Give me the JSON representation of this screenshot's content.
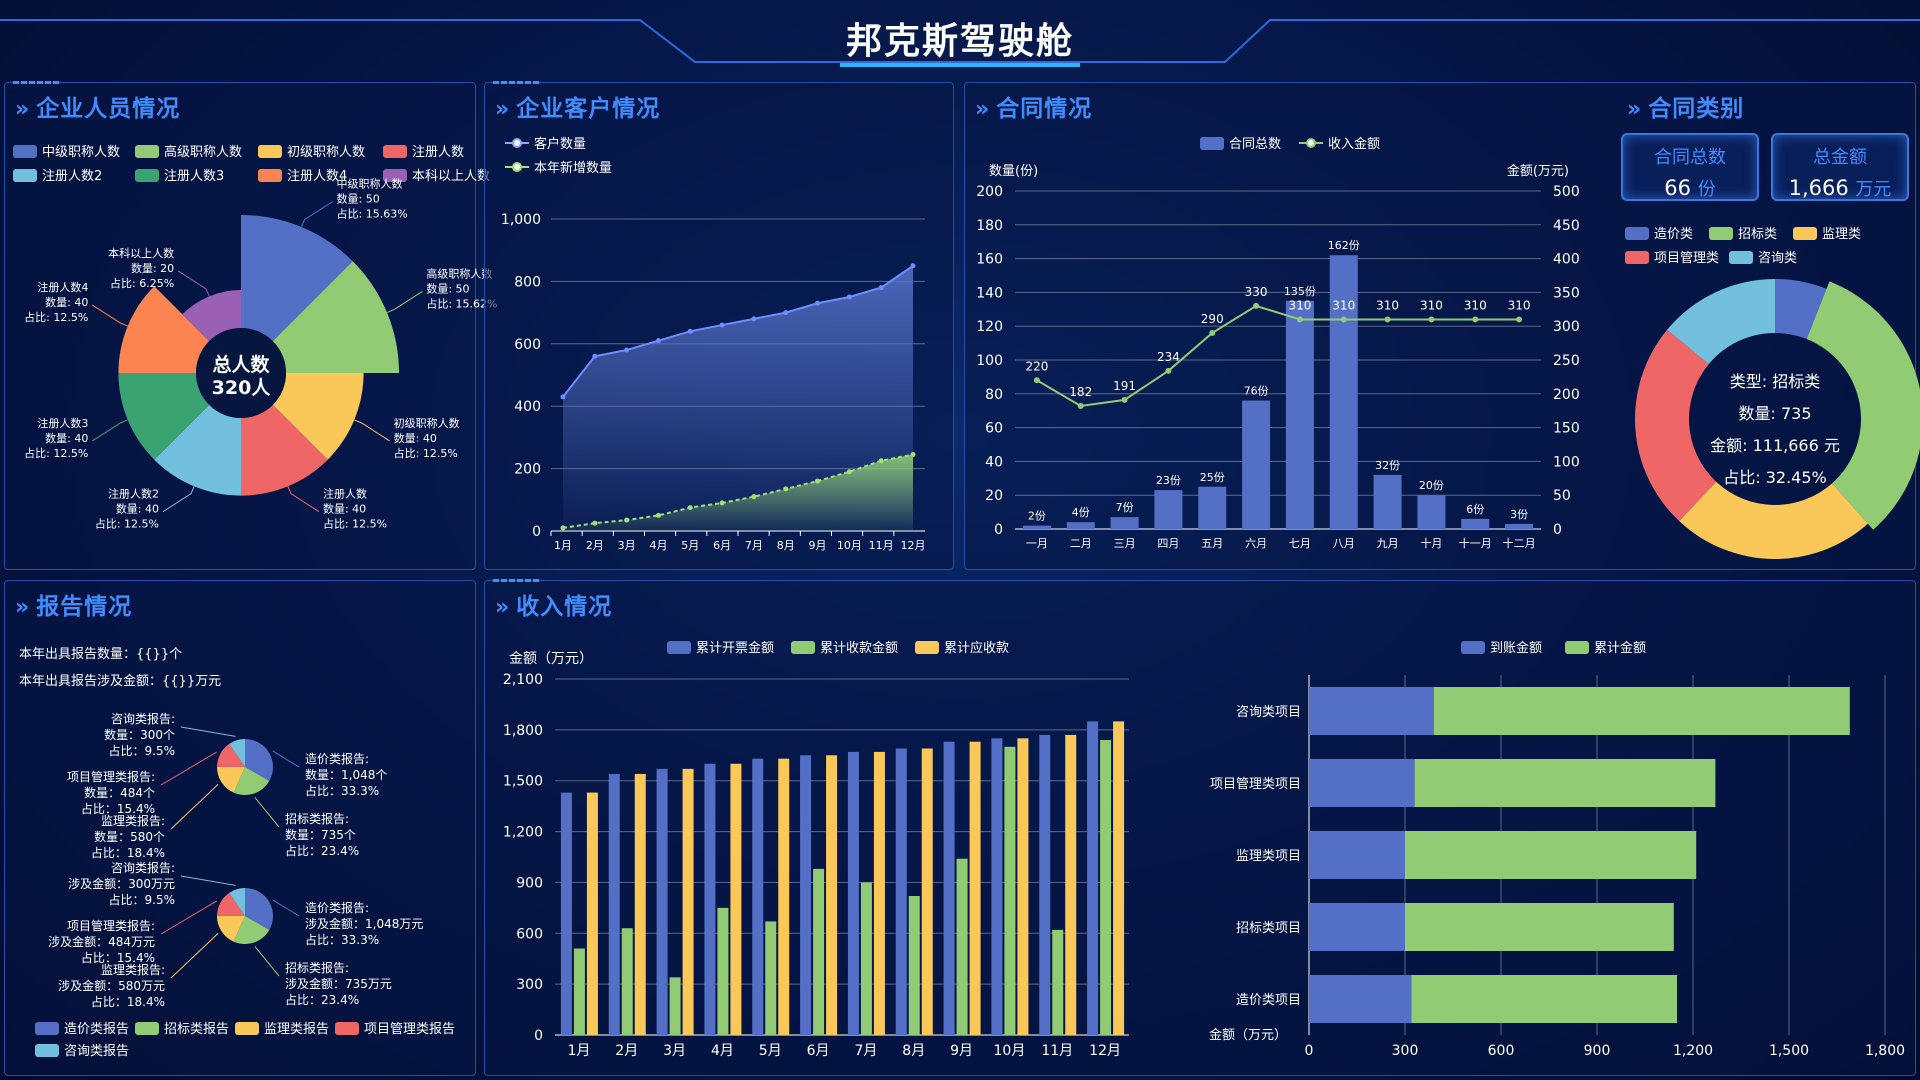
{
  "title": "邦克斯驾驶舱",
  "panels": {
    "staff": "企业人员情况",
    "customers": "企业客户情况",
    "contracts": "合同情况",
    "contract_types": "合同类别",
    "reports": "报告情况",
    "income": "收入情况"
  },
  "colors": [
    "#5470c6",
    "#91cc75",
    "#fac858",
    "#ee6666",
    "#73c0de",
    "#3ba272",
    "#fc8452",
    "#9a60b4"
  ],
  "stats": {
    "total_contracts_label": "合同总数",
    "total_contracts_value": "66",
    "total_contracts_unit": "份",
    "total_amount_label": "总金额",
    "total_amount_value": "1,666",
    "total_amount_unit": "万元"
  },
  "reports_text": {
    "count": "本年出具报告数量：{{}}个",
    "amount": "本年出具报告涉及金额：{{}}万元"
  },
  "chart_data": [
    {
      "id": "staff",
      "type": "pie",
      "center_label": "总人数",
      "center_value": "320人",
      "legend": [
        "中级职称人数",
        "高级职称人数",
        "初级职称人数",
        "注册人数",
        "注册人数2",
        "注册人数3",
        "注册人数4",
        "本科以上人数"
      ],
      "slices": [
        {
          "name": "中级职称人数",
          "value": 50,
          "pct": "15.63%"
        },
        {
          "name": "高级职称人数",
          "value": 50,
          "pct": "15.62%"
        },
        {
          "name": "初级职称人数",
          "value": 40,
          "pct": "12.5%"
        },
        {
          "name": "注册人数",
          "value": 40,
          "pct": "12.5%"
        },
        {
          "name": "注册人数2",
          "value": 40,
          "pct": "12.5%"
        },
        {
          "name": "注册人数3",
          "value": 40,
          "pct": "12.5%"
        },
        {
          "name": "注册人数4",
          "value": 40,
          "pct": "12.5%"
        },
        {
          "name": "本科以上人数",
          "value": 20,
          "pct": "6.25%"
        }
      ],
      "value_prefix": "数量: ",
      "pct_prefix": "占比: "
    },
    {
      "id": "customers",
      "type": "area",
      "categories": [
        "1月",
        "2月",
        "3月",
        "4月",
        "5月",
        "6月",
        "7月",
        "8月",
        "9月",
        "10月",
        "11月",
        "12月"
      ],
      "ylim": [
        0,
        1000
      ],
      "yticks": [
        "0",
        "200",
        "400",
        "600",
        "800",
        "1,000"
      ],
      "series": [
        {
          "name": "客户数量",
          "values": [
            430,
            560,
            580,
            610,
            640,
            660,
            680,
            700,
            730,
            750,
            780,
            850
          ]
        },
        {
          "name": "本年新增数量",
          "values": [
            10,
            25,
            35,
            50,
            75,
            90,
            110,
            135,
            160,
            190,
            225,
            245
          ]
        }
      ]
    },
    {
      "id": "contracts",
      "type": "bar",
      "categories": [
        "一月",
        "二月",
        "三月",
        "四月",
        "五月",
        "六月",
        "七月",
        "八月",
        "九月",
        "十月",
        "十一月",
        "十二月"
      ],
      "ylabel": "数量(份)",
      "ylabel_right": "金额(万元)",
      "ylim": [
        0,
        200
      ],
      "ylim_right": [
        0,
        500
      ],
      "yticks": [
        "0",
        "20",
        "40",
        "60",
        "80",
        "100",
        "120",
        "140",
        "160",
        "180",
        "200"
      ],
      "yticks_right": [
        "0",
        "50",
        "100",
        "150",
        "200",
        "250",
        "300",
        "350",
        "400",
        "450",
        "500"
      ],
      "series": [
        {
          "name": "合同总数",
          "values": [
            2,
            4,
            7,
            23,
            25,
            76,
            135,
            162,
            32,
            20,
            6,
            3
          ],
          "labels": [
            "2份",
            "4份",
            "7份",
            "23份",
            "25份",
            "76份",
            "135份",
            "162份",
            "32份",
            "20份",
            "6份",
            "3份"
          ]
        },
        {
          "name": "收入金额",
          "values": [
            220,
            182,
            191,
            234,
            290,
            330,
            310,
            310,
            310,
            310,
            310,
            310
          ],
          "labels": [
            "220",
            "182",
            "191",
            "234",
            "290",
            "330",
            "310",
            "310",
            "310",
            "310",
            "310",
            "310"
          ]
        }
      ]
    },
    {
      "id": "contract_types",
      "type": "pie",
      "legend": [
        "造价类",
        "招标类",
        "监理类",
        "项目管理类",
        "咨询类"
      ],
      "slices": [
        {
          "name": "造价类",
          "value": 6
        },
        {
          "name": "招标类",
          "value": 32.45
        },
        {
          "name": "监理类",
          "value": 23.55
        },
        {
          "name": "项目管理类",
          "value": 24
        },
        {
          "name": "咨询类",
          "value": 14
        }
      ],
      "tooltip": [
        "类型: 招标类",
        "数量: 735",
        "金额: 111,666 元",
        "占比: 32.45%"
      ]
    },
    {
      "id": "reports_count",
      "type": "pie",
      "slices": [
        {
          "name": "造价类报告",
          "value": 1048,
          "label": [
            "造价类报告:",
            "数量：1,048个",
            "占比：33.3%"
          ]
        },
        {
          "name": "招标类报告",
          "value": 735,
          "label": [
            "招标类报告:",
            "数量：735个",
            "占比：23.4%"
          ]
        },
        {
          "name": "监理类报告",
          "value": 580,
          "label": [
            "监理类报告:",
            "数量：580个",
            "占比：18.4%"
          ]
        },
        {
          "name": "项目管理类报告",
          "value": 484,
          "label": [
            "项目管理类报告:",
            "数量：484个",
            "占比：15.4%"
          ]
        },
        {
          "name": "咨询类报告",
          "value": 300,
          "label": [
            "咨询类报告:",
            "数量：300个",
            "占比：9.5%"
          ]
        }
      ]
    },
    {
      "id": "reports_amount",
      "type": "pie",
      "slices": [
        {
          "name": "造价类报告",
          "value": 1048,
          "label": [
            "造价类报告:",
            "涉及金额：1,048万元",
            "占比：33.3%"
          ]
        },
        {
          "name": "招标类报告",
          "value": 735,
          "label": [
            "招标类报告:",
            "涉及金额：735万元",
            "占比：23.4%"
          ]
        },
        {
          "name": "监理类报告",
          "value": 580,
          "label": [
            "监理类报告:",
            "涉及金额：580万元",
            "占比：18.4%"
          ]
        },
        {
          "name": "项目管理类报告",
          "value": 484,
          "label": [
            "项目管理类报告:",
            "涉及金额：484万元",
            "占比：15.4%"
          ]
        },
        {
          "name": "咨询类报告",
          "value": 300,
          "label": [
            "咨询类报告:",
            "涉及金额：300万元",
            "占比：9.5%"
          ]
        }
      ],
      "legend": [
        "造价类报告",
        "招标类报告",
        "监理类报告",
        "项目管理类报告",
        "咨询类报告"
      ]
    },
    {
      "id": "income",
      "type": "bar",
      "categories": [
        "1月",
        "2月",
        "3月",
        "4月",
        "5月",
        "6月",
        "7月",
        "8月",
        "9月",
        "10月",
        "11月",
        "12月"
      ],
      "ylabel": "金额（万元）",
      "ylim": [
        0,
        2100
      ],
      "yticks": [
        "0",
        "300",
        "600",
        "900",
        "1,200",
        "1,500",
        "1,800",
        "2,100"
      ],
      "series": [
        {
          "name": "累计开票金额",
          "values": [
            1430,
            1540,
            1570,
            1600,
            1630,
            1650,
            1670,
            1690,
            1730,
            1750,
            1770,
            1850
          ]
        },
        {
          "name": "累计收款金额",
          "values": [
            510,
            630,
            340,
            750,
            670,
            980,
            900,
            820,
            1040,
            1700,
            620,
            1740
          ]
        },
        {
          "name": "累计应收款",
          "values": [
            1430,
            1540,
            1570,
            1600,
            1630,
            1650,
            1670,
            1690,
            1730,
            1750,
            1770,
            1850
          ]
        }
      ]
    },
    {
      "id": "income_projects",
      "type": "bar",
      "orientation": "horizontal",
      "categories": [
        "咨询类项目",
        "项目管理类项目",
        "监理类项目",
        "招标类项目",
        "造价类项目"
      ],
      "xlabel": "金额（万元）",
      "xlim": [
        0,
        1800
      ],
      "xticks": [
        "0",
        "300",
        "600",
        "900",
        "1,200",
        "1,500",
        "1,800"
      ],
      "series": [
        {
          "name": "到账金额",
          "values": [
            390,
            330,
            300,
            300,
            320
          ]
        },
        {
          "name": "累计金额",
          "values": [
            1300,
            940,
            910,
            840,
            830
          ]
        }
      ]
    }
  ]
}
